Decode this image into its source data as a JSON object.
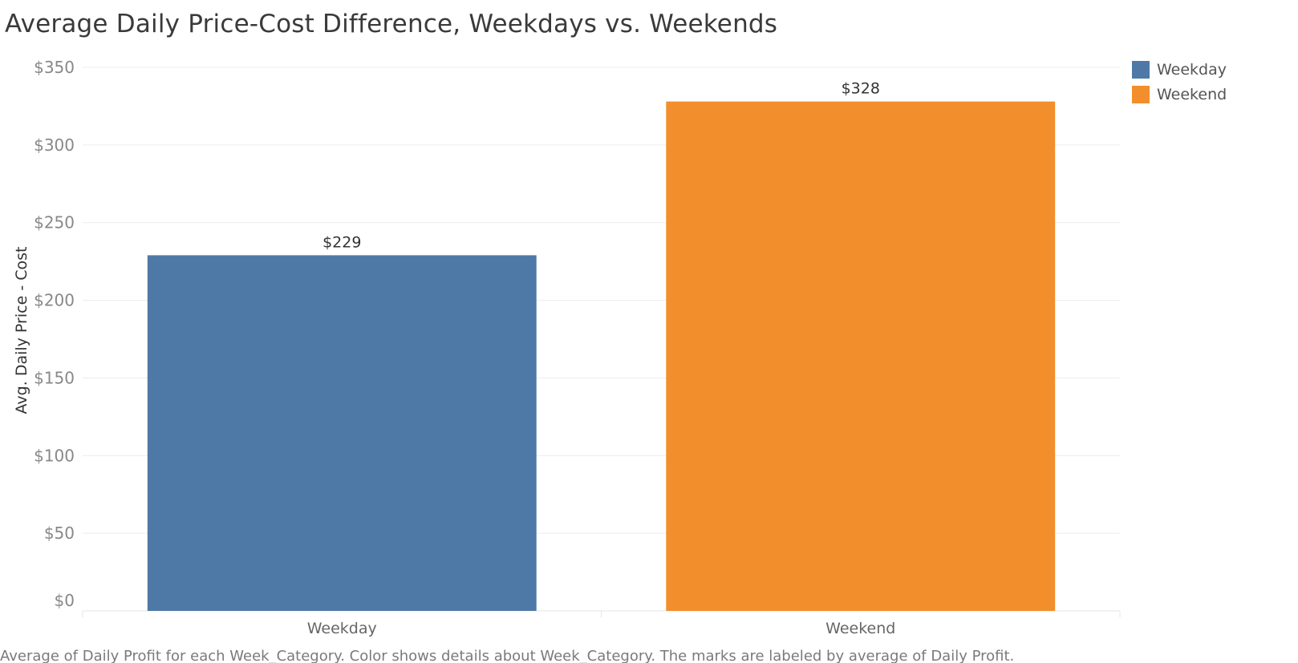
{
  "chart_data": {
    "type": "bar",
    "title": "Average Daily Price-Cost Difference, Weekdays vs. Weekends",
    "xlabel": "",
    "ylabel": "Avg. Daily Price - Cost",
    "categories": [
      "Weekday",
      "Weekend"
    ],
    "values": [
      229,
      328
    ],
    "data_labels": [
      "$229",
      "$328"
    ],
    "colors": [
      "#4e79a7",
      "#f28e2b"
    ],
    "ylim": [
      0,
      350
    ],
    "yticks": [
      0,
      50,
      100,
      150,
      200,
      250,
      300,
      350
    ],
    "ytick_labels": [
      "$0",
      "$50",
      "$100",
      "$150",
      "$200",
      "$250",
      "$300",
      "$350"
    ],
    "grid": true,
    "legend": {
      "placement": "top-right",
      "entries": [
        {
          "label": "Weekday",
          "color": "#4e79a7"
        },
        {
          "label": "Weekend",
          "color": "#f28e2b"
        }
      ]
    },
    "caption": "Average of Daily Profit for each Week_Category.  Color shows details about Week_Category.  The marks are labeled by average of Daily Profit."
  }
}
